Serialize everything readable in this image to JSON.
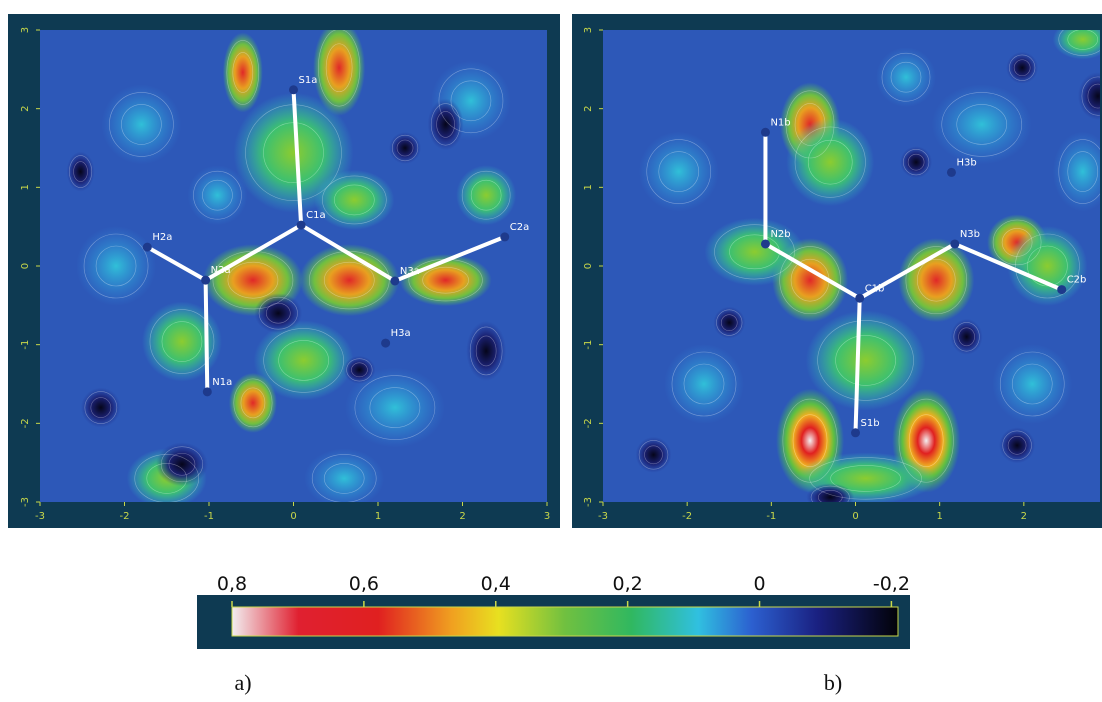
{
  "chart_data": [
    {
      "type": "density-map",
      "caption": "a)",
      "xlim": [
        -3,
        3
      ],
      "ylim": [
        -3,
        3
      ],
      "xticks": [
        -3,
        -2,
        -1,
        0,
        1,
        2,
        3
      ],
      "yticks": [
        -3,
        -2,
        -1,
        0,
        1,
        2,
        3
      ],
      "atoms": [
        {
          "label": "S1a",
          "x": 0,
          "y": 2.24
        },
        {
          "label": "C1a",
          "x": 0.09,
          "y": 0.52
        },
        {
          "label": "H2a",
          "x": -1.73,
          "y": 0.24
        },
        {
          "label": "N2a",
          "x": -1.04,
          "y": -0.18
        },
        {
          "label": "N1a",
          "x": -1.02,
          "y": -1.6
        },
        {
          "label": "N3a",
          "x": 1.2,
          "y": -0.19
        },
        {
          "label": "C2a",
          "x": 2.5,
          "y": 0.37
        },
        {
          "label": "H3a",
          "x": 1.09,
          "y": -0.98
        }
      ]
    },
    {
      "type": "density-map",
      "caption": "b)",
      "xlim": [
        -3,
        3
      ],
      "ylim": [
        -3,
        3
      ],
      "xticks": [
        -3,
        -2,
        -1,
        0,
        1,
        2
      ],
      "yticks": [
        -3,
        -2,
        -1,
        0,
        1,
        2,
        3
      ],
      "atoms": [
        {
          "label": "N1b",
          "x": -1.07,
          "y": 1.7
        },
        {
          "label": "H3b",
          "x": 1.14,
          "y": 1.19
        },
        {
          "label": "N2b",
          "x": -1.07,
          "y": 0.28
        },
        {
          "label": "C1b",
          "x": 0.05,
          "y": -0.41
        },
        {
          "label": "N3b",
          "x": 1.18,
          "y": 0.28
        },
        {
          "label": "C2b",
          "x": 2.45,
          "y": -0.3
        },
        {
          "label": "S1b",
          "x": 0,
          "y": -2.12
        }
      ]
    },
    {
      "type": "colorbar",
      "clim": [
        0.8,
        -0.21
      ],
      "ticks": [
        {
          "value": 0.8,
          "label": "0,8"
        },
        {
          "value": 0.6,
          "label": "0,6"
        },
        {
          "value": 0.4,
          "label": "0,4"
        },
        {
          "value": 0.2,
          "label": "0,2"
        },
        0,
        {
          "value": -0.2,
          "label": "-0,2"
        }
      ]
    }
  ]
}
